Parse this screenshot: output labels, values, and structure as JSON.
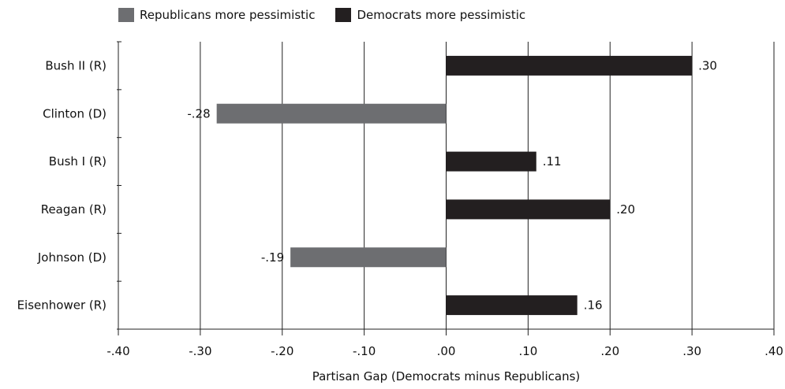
{
  "chart_data": {
    "type": "bar",
    "orientation": "horizontal",
    "categories": [
      "Bush II (R)",
      "Clinton (D)",
      "Bush I (R)",
      "Reagan (R)",
      "Johnson (D)",
      "Eisenhower (R)"
    ],
    "values": [
      0.3,
      -0.28,
      0.11,
      0.2,
      -0.19,
      0.16
    ],
    "data_labels": [
      ".30",
      "-.28",
      ".11",
      ".20",
      "-.19",
      ".16"
    ],
    "xlabel": "Partisan Gap (Democrats minus Republicans)",
    "ylabel": "",
    "xlim": [
      -0.4,
      0.4
    ],
    "xticks": [
      -0.4,
      -0.3,
      -0.2,
      -0.1,
      0.0,
      0.1,
      0.2,
      0.3,
      0.4
    ],
    "xtick_labels": [
      "-.40",
      "-.30",
      "-.20",
      "-.10",
      ".00",
      ".10",
      ".20",
      ".30",
      ".40"
    ],
    "grid": "vertical",
    "legend_position": "top-left",
    "legend": [
      {
        "label": "Republicans more pessimistic",
        "color": "#6d6e71"
      },
      {
        "label": "Democrats more pessimistic",
        "color": "#231f20"
      }
    ]
  }
}
